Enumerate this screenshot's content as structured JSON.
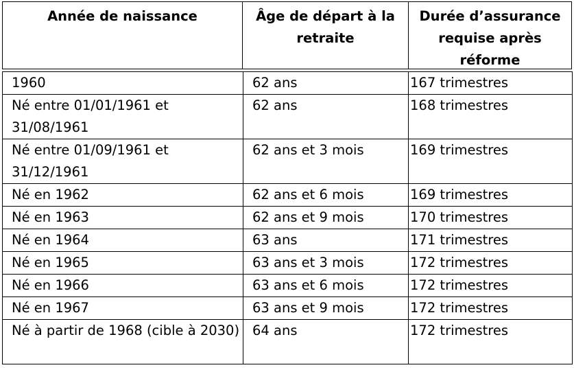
{
  "table": {
    "headers": {
      "col1": [
        "Année de naissance"
      ],
      "col2": [
        "Âge de départ à la",
        "retraite"
      ],
      "col3": [
        "Durée d’assurance",
        "requise après",
        "réforme"
      ]
    },
    "rows": [
      {
        "birth": "1960",
        "age": "62 ans",
        "duration": "167 trimestres"
      },
      {
        "birth": "Né entre  01/01/1961 et 31/08/1961",
        "age": "62 ans",
        "duration": "168 trimestres"
      },
      {
        "birth": "Né entre  01/09/1961 et 31/12/1961",
        "age": "62 ans et 3 mois",
        "duration": "169 trimestres"
      },
      {
        "birth": "Né en 1962",
        "age": "62 ans et 6 mois",
        "duration": "169 trimestres"
      },
      {
        "birth": "Né en 1963",
        "age": "62 ans et 9 mois",
        "duration": "170 trimestres"
      },
      {
        "birth": "Né en 1964",
        "age": "63 ans",
        "duration": "171 trimestres"
      },
      {
        "birth": "Né en 1965",
        "age": "63 ans et 3 mois",
        "duration": "172 trimestres"
      },
      {
        "birth": "Né en 1966",
        "age": "63 ans et 6 mois",
        "duration": "172 trimestres"
      },
      {
        "birth": "Né en 1967",
        "age": "63 ans et 9 mois",
        "duration": "172 trimestres"
      },
      {
        "birth": "Né à partir de 1968 (cible à 2030)",
        "age": "64 ans",
        "duration": "172 trimestres"
      }
    ]
  }
}
